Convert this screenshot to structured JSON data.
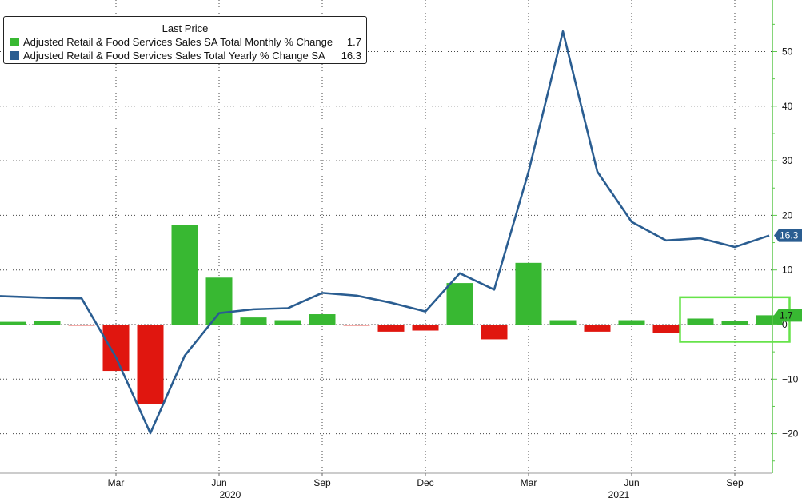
{
  "legend": {
    "title": "Last Price",
    "items": [
      {
        "name": "Adjusted Retail & Food Services Sales SA Total Monthly % Change",
        "value": "1.7",
        "color": "#38b832"
      },
      {
        "name": "Adjusted Retail & Food Services Sales Total Yearly % Change SA",
        "value": "16.3",
        "color": "#2a5d91"
      }
    ]
  },
  "chart_data": {
    "type": "bar+line",
    "x_labels": [
      "Mar",
      "Jun",
      "Sep",
      "Dec",
      "Mar",
      "Jun",
      "Sep"
    ],
    "year_labels": [
      "2020",
      "2021"
    ],
    "ylim": [
      -27,
      59
    ],
    "yticks": [
      -20,
      -10,
      0,
      10,
      20,
      30,
      40,
      50
    ],
    "grid": true,
    "legend_position": "top-left",
    "colors": {
      "positive_bar": "#38b832",
      "negative_bar": "#e0160f",
      "line": "#2a5d91",
      "axis": "#5ec84e",
      "highlight_box": "#66e34a"
    },
    "categories": [
      "2019-12",
      "2020-01",
      "2020-02",
      "2020-03",
      "2020-04",
      "2020-05",
      "2020-06",
      "2020-07",
      "2020-08",
      "2020-09",
      "2020-10",
      "2020-11",
      "2020-12",
      "2021-01",
      "2021-02",
      "2021-03",
      "2021-04",
      "2021-05",
      "2021-06",
      "2021-07",
      "2021-08",
      "2021-09",
      "2021-10"
    ],
    "series": [
      {
        "name": "Adjusted Retail & Food Services Sales SA Total Monthly % Change",
        "kind": "bar",
        "values": [
          0.5,
          0.6,
          -0.2,
          -8.5,
          -14.6,
          18.2,
          8.6,
          1.3,
          0.8,
          1.9,
          -0.2,
          -1.3,
          -1.1,
          7.6,
          -2.7,
          11.3,
          0.8,
          -1.3,
          0.8,
          -1.6,
          1.1,
          0.7,
          1.7
        ],
        "last": "1.7"
      },
      {
        "name": "Adjusted Retail & Food Services Sales Total Yearly % Change SA",
        "kind": "line",
        "values": [
          5.2,
          4.9,
          4.8,
          -6.0,
          -19.9,
          -5.7,
          2.1,
          2.8,
          3.0,
          5.8,
          5.3,
          4.0,
          2.4,
          9.4,
          6.4,
          28.0,
          53.7,
          28.0,
          18.8,
          15.4,
          15.8,
          14.2,
          16.3
        ],
        "last": "16.3"
      }
    ]
  }
}
